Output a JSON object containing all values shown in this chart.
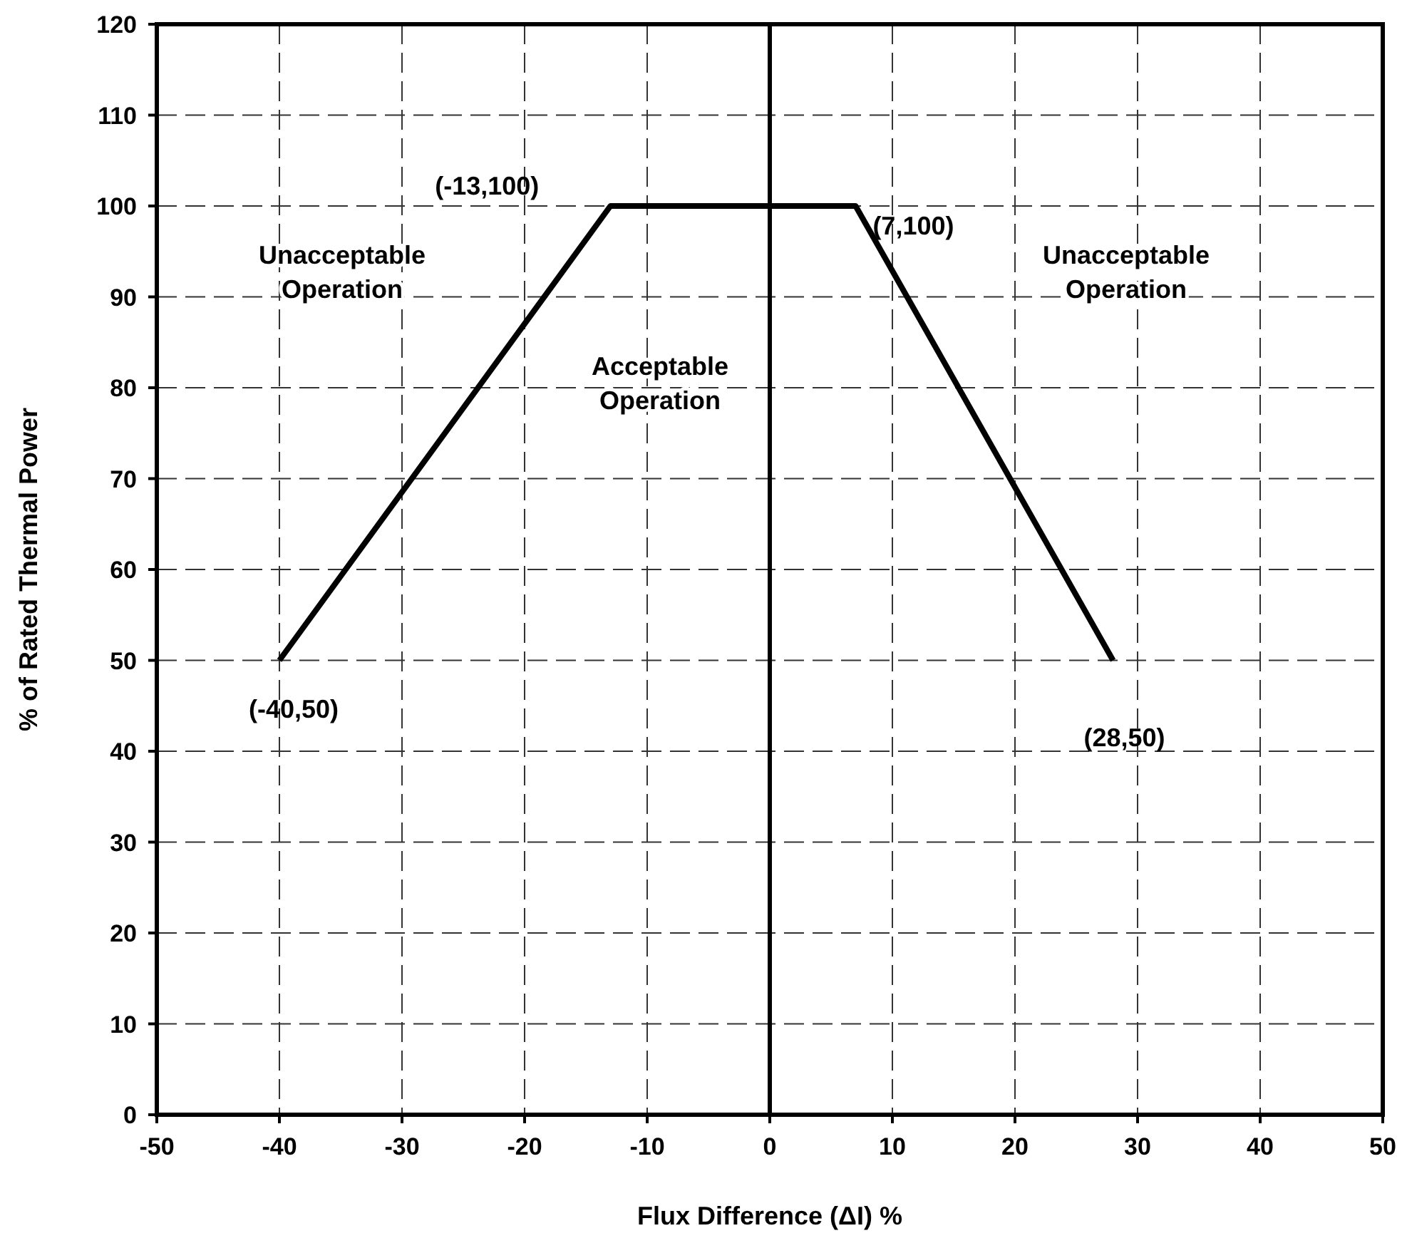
{
  "chart_data": {
    "type": "line",
    "xlabel": "Flux Difference (ΔI) %",
    "ylabel": "% of Rated Thermal Power",
    "x": [
      -40,
      -13,
      7,
      28
    ],
    "series": [
      {
        "color": "#000000",
        "values": [
          50,
          100,
          100,
          50
        ]
      }
    ],
    "xlim": [
      -50,
      50
    ],
    "xticks": [
      -50,
      -40,
      -30,
      -20,
      -10,
      0,
      10,
      20,
      30,
      40,
      50
    ],
    "ylim": [
      0,
      120
    ],
    "yticks": [
      0,
      10,
      20,
      30,
      40,
      50,
      60,
      70,
      80,
      90,
      100,
      110,
      120
    ],
    "grid": true,
    "marker": "none",
    "line_style": "solid",
    "ref_lines": [
      {
        "axis": "x",
        "value": 0,
        "color": "#000000"
      }
    ],
    "annotations": [
      {
        "text": "(-13,100)",
        "x": -13,
        "y": 100
      },
      {
        "text": "(7,100)",
        "x": 7,
        "y": 100
      },
      {
        "text": "(-40,50)",
        "x": -40,
        "y": 50
      },
      {
        "text": "(28,50)",
        "x": 28,
        "y": 50
      },
      "Unacceptable Operation",
      "Acceptable Operation",
      "Unacceptable Operation"
    ]
  }
}
